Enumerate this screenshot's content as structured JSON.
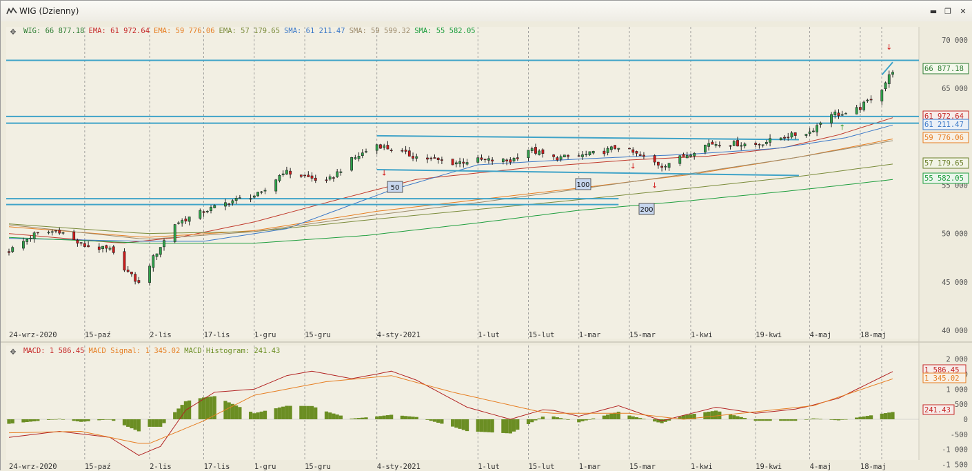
{
  "window": {
    "title": "WIG (Dzienny)",
    "buttons": [
      "minimize",
      "restore",
      "close"
    ]
  },
  "price_panel": {
    "legend": [
      {
        "label": "WIG:",
        "value": "66 877.18",
        "color": "#2E7D32"
      },
      {
        "label": "EMA:",
        "value": "61 972.64",
        "color": "#C62828"
      },
      {
        "label": "EMA:",
        "value": "59 776.06",
        "color": "#E67E22"
      },
      {
        "label": "EMA:",
        "value": "57 179.65",
        "color": "#7A8B3A"
      },
      {
        "label": "SMA:",
        "value": "61 211.47",
        "color": "#3A78C8"
      },
      {
        "label": "SMA:",
        "value": "59 599.32",
        "color": "#9C8A6A"
      },
      {
        "label": "SMA:",
        "value": "55 582.05",
        "color": "#1E9E3E"
      }
    ],
    "y_ticks": [
      "70 000",
      "65 000",
      "60 000",
      "55 000",
      "50 000",
      "45 000",
      "40 000"
    ],
    "x_ticks": [
      "24-wrz-2020",
      "15-paź",
      "2-lis",
      "17-lis",
      "1-gru",
      "15-gru",
      "4-sty-2021",
      "1-lut",
      "15-lut",
      "1-mar",
      "15-mar",
      "1-kwi",
      "19-kwi",
      "4-maj",
      "18-maj"
    ],
    "price_tags": [
      {
        "text": "66 877.18",
        "color": "#2E7D32",
        "bg": "#F4F8EC"
      },
      {
        "text": "61 972.64",
        "color": "#C62828",
        "bg": "#F7EDEA"
      },
      {
        "text": "61 211.47",
        "color": "#3A78C8",
        "bg": "#EAF0F7"
      },
      {
        "text": "59 776.06",
        "color": "#E67E22",
        "bg": "#F8F0E4"
      },
      {
        "text": "57 179.65",
        "color": "#6B7F2A",
        "bg": "#F2F4E6"
      },
      {
        "text": "55 582.05",
        "color": "#1E9E3E",
        "bg": "#EAF5EC"
      }
    ],
    "line_labels": [
      "50",
      "100",
      "200"
    ]
  },
  "macd_panel": {
    "legend": [
      {
        "label": "MACD:",
        "value": "1 586.45",
        "color": "#C62828"
      },
      {
        "label": "MACD Signal:",
        "value": "1 345.02",
        "color": "#E67E22"
      },
      {
        "label": "MACD Histogram:",
        "value": "241.43",
        "color": "#6B8E23"
      }
    ],
    "y_ticks": [
      "2 000",
      "1 500",
      "1 000",
      "500",
      "0",
      "-500",
      "-1 000",
      "-1 500"
    ],
    "x_ticks": [
      "24-wrz-2020",
      "15-paź",
      "2-lis",
      "17-lis",
      "1-gru",
      "15-gru",
      "4-sty-2021",
      "1-lut",
      "15-lut",
      "1-mar",
      "15-mar",
      "1-kwi",
      "19-kwi",
      "4-maj",
      "18-maj"
    ],
    "value_tags": [
      {
        "text": "1 586.45",
        "color": "#C62828",
        "bg": "#F7EDEA"
      },
      {
        "text": "1 345.02",
        "color": "#E67E22",
        "bg": "#F8F0E4"
      },
      {
        "text": "241.43",
        "color": "#C62828",
        "bg": "#F7EDEA"
      }
    ]
  },
  "chart_data": [
    {
      "type": "candlestick",
      "title": "WIG (Dzienny)",
      "ylim": [
        40000,
        70000
      ],
      "x_range": [
        "24-wrz-2020",
        "27-maj-2021"
      ],
      "close_waypoints": [
        {
          "x": "2020-09-24",
          "y": 48200
        },
        {
          "x": "2020-10-01",
          "y": 49900
        },
        {
          "x": "2020-10-08",
          "y": 50300
        },
        {
          "x": "2020-10-14",
          "y": 48800
        },
        {
          "x": "2020-10-22",
          "y": 48300
        },
        {
          "x": "2020-10-27",
          "y": 46000
        },
        {
          "x": "2020-10-30",
          "y": 44800
        },
        {
          "x": "2020-11-03",
          "y": 47500
        },
        {
          "x": "2020-11-09",
          "y": 51000
        },
        {
          "x": "2020-11-17",
          "y": 52300
        },
        {
          "x": "2020-11-25",
          "y": 53400
        },
        {
          "x": "2020-12-03",
          "y": 54100
        },
        {
          "x": "2020-12-09",
          "y": 56400
        },
        {
          "x": "2020-12-15",
          "y": 55900
        },
        {
          "x": "2020-12-21",
          "y": 55300
        },
        {
          "x": "2020-12-28",
          "y": 57600
        },
        {
          "x": "2021-01-04",
          "y": 59200
        },
        {
          "x": "2021-01-08",
          "y": 58700
        },
        {
          "x": "2021-01-14",
          "y": 58000
        },
        {
          "x": "2021-01-25",
          "y": 57300
        },
        {
          "x": "2021-02-01",
          "y": 57600
        },
        {
          "x": "2021-02-10",
          "y": 57500
        },
        {
          "x": "2021-02-15",
          "y": 58700
        },
        {
          "x": "2021-02-22",
          "y": 57800
        },
        {
          "x": "2021-03-01",
          "y": 58000
        },
        {
          "x": "2021-03-08",
          "y": 58500
        },
        {
          "x": "2021-03-12",
          "y": 59000
        },
        {
          "x": "2021-03-18",
          "y": 58000
        },
        {
          "x": "2021-03-24",
          "y": 57000
        },
        {
          "x": "2021-03-30",
          "y": 58000
        },
        {
          "x": "2021-04-06",
          "y": 59300
        },
        {
          "x": "2021-04-12",
          "y": 59300
        },
        {
          "x": "2021-04-19",
          "y": 59200
        },
        {
          "x": "2021-04-27",
          "y": 60000
        },
        {
          "x": "2021-05-04",
          "y": 60500
        },
        {
          "x": "2021-05-10",
          "y": 62500
        },
        {
          "x": "2021-05-14",
          "y": 62200
        },
        {
          "x": "2021-05-18",
          "y": 63000
        },
        {
          "x": "2021-05-24",
          "y": 65000
        },
        {
          "x": "2021-05-27",
          "y": 66877.18
        }
      ],
      "indicator_series": [
        {
          "name": "EMA",
          "last": 61972.64,
          "points": [
            {
              "x": "2020-09-24",
              "y": 50000
            },
            {
              "x": "2020-10-25",
              "y": 49000
            },
            {
              "x": "2020-11-10",
              "y": 49600
            },
            {
              "x": "2020-12-01",
              "y": 51200
            },
            {
              "x": "2020-12-21",
              "y": 53200
            },
            {
              "x": "2021-01-15",
              "y": 55600
            },
            {
              "x": "2021-02-15",
              "y": 56800
            },
            {
              "x": "2021-03-15",
              "y": 57600
            },
            {
              "x": "2021-04-06",
              "y": 58000
            },
            {
              "x": "2021-04-27",
              "y": 58900
            },
            {
              "x": "2021-05-12",
              "y": 60200
            },
            {
              "x": "2021-05-27",
              "y": 61972.64
            }
          ]
        },
        {
          "name": "EMA",
          "last": 59776.06,
          "points": [
            {
              "x": "2020-09-24",
              "y": 50700
            },
            {
              "x": "2020-11-01",
              "y": 49600
            },
            {
              "x": "2020-12-01",
              "y": 50300
            },
            {
              "x": "2021-01-04",
              "y": 52300
            },
            {
              "x": "2021-02-01",
              "y": 53500
            },
            {
              "x": "2021-03-01",
              "y": 54700
            },
            {
              "x": "2021-04-01",
              "y": 56100
            },
            {
              "x": "2021-05-01",
              "y": 57900
            },
            {
              "x": "2021-05-27",
              "y": 59776.06
            }
          ]
        },
        {
          "name": "EMA",
          "last": 57179.65,
          "points": [
            {
              "x": "2020-09-24",
              "y": 51000
            },
            {
              "x": "2020-11-01",
              "y": 50000
            },
            {
              "x": "2020-12-01",
              "y": 50200
            },
            {
              "x": "2021-01-04",
              "y": 51500
            },
            {
              "x": "2021-02-01",
              "y": 52500
            },
            {
              "x": "2021-03-01",
              "y": 53500
            },
            {
              "x": "2021-04-01",
              "y": 54700
            },
            {
              "x": "2021-05-01",
              "y": 55900
            },
            {
              "x": "2021-05-27",
              "y": 57179.65
            }
          ]
        },
        {
          "name": "SMA",
          "last": 61211.47,
          "points": [
            {
              "x": "2020-09-24",
              "y": 49500
            },
            {
              "x": "2020-11-01",
              "y": 49200
            },
            {
              "x": "2020-11-17",
              "y": 49200
            },
            {
              "x": "2020-12-10",
              "y": 50500
            },
            {
              "x": "2021-01-08",
              "y": 54500
            },
            {
              "x": "2021-02-01",
              "y": 57100
            },
            {
              "x": "2021-03-01",
              "y": 57700
            },
            {
              "x": "2021-04-01",
              "y": 58200
            },
            {
              "x": "2021-04-25",
              "y": 58800
            },
            {
              "x": "2021-05-14",
              "y": 59900
            },
            {
              "x": "2021-05-27",
              "y": 61211.47
            }
          ]
        },
        {
          "name": "SMA",
          "last": 59599.32,
          "points": [
            {
              "x": "2020-09-24",
              "y": 50900
            },
            {
              "x": "2020-11-01",
              "y": 49400
            },
            {
              "x": "2020-12-01",
              "y": 50200
            },
            {
              "x": "2021-01-01",
              "y": 51800
            },
            {
              "x": "2021-02-01",
              "y": 53200
            },
            {
              "x": "2021-03-01",
              "y": 54600
            },
            {
              "x": "2021-04-01",
              "y": 56200
            },
            {
              "x": "2021-05-01",
              "y": 57900
            },
            {
              "x": "2021-05-27",
              "y": 59599.32
            }
          ]
        },
        {
          "name": "SMA",
          "last": 55582.05,
          "points": [
            {
              "x": "2020-09-24",
              "y": 49600
            },
            {
              "x": "2020-11-01",
              "y": 49000
            },
            {
              "x": "2020-12-01",
              "y": 49000
            },
            {
              "x": "2021-01-01",
              "y": 49800
            },
            {
              "x": "2021-02-01",
              "y": 51100
            },
            {
              "x": "2021-03-01",
              "y": 52400
            },
            {
              "x": "2021-04-01",
              "y": 53400
            },
            {
              "x": "2021-05-01",
              "y": 54500
            },
            {
              "x": "2021-05-27",
              "y": 55582.05
            }
          ]
        }
      ],
      "horizontal_levels": [
        67900,
        62100,
        61400,
        53600,
        53000
      ],
      "trend_lines": [
        {
          "from": {
            "x": "2021-01-04",
            "y": 60100
          },
          "to": {
            "x": "2021-05-01",
            "y": 59700
          }
        },
        {
          "from": {
            "x": "2021-01-04",
            "y": 56600
          },
          "to": {
            "x": "2021-05-01",
            "y": 56000
          }
        },
        {
          "from": {
            "x": "2021-05-24",
            "y": 66400
          },
          "to": {
            "x": "2021-05-27",
            "y": 67700
          }
        }
      ]
    },
    {
      "type": "bar+line",
      "title": "MACD",
      "ylim": [
        -1700,
        2100
      ],
      "series": [
        {
          "name": "MACD",
          "last": 1586.45,
          "points": [
            {
              "x": "2020-09-24",
              "y": -600
            },
            {
              "x": "2020-10-08",
              "y": -400
            },
            {
              "x": "2020-10-22",
              "y": -600
            },
            {
              "x": "2020-10-30",
              "y": -1200
            },
            {
              "x": "2020-11-05",
              "y": -900
            },
            {
              "x": "2020-11-12",
              "y": 300
            },
            {
              "x": "2020-11-20",
              "y": 900
            },
            {
              "x": "2020-12-01",
              "y": 1000
            },
            {
              "x": "2020-12-10",
              "y": 1450
            },
            {
              "x": "2020-12-17",
              "y": 1600
            },
            {
              "x": "2020-12-28",
              "y": 1350
            },
            {
              "x": "2021-01-04",
              "y": 1500
            },
            {
              "x": "2021-01-08",
              "y": 1600
            },
            {
              "x": "2021-01-15",
              "y": 1300
            },
            {
              "x": "2021-01-29",
              "y": 400
            },
            {
              "x": "2021-02-10",
              "y": 0
            },
            {
              "x": "2021-02-20",
              "y": 350
            },
            {
              "x": "2021-03-01",
              "y": 100
            },
            {
              "x": "2021-03-12",
              "y": 450
            },
            {
              "x": "2021-03-24",
              "y": -50
            },
            {
              "x": "2021-04-08",
              "y": 400
            },
            {
              "x": "2021-04-19",
              "y": 200
            },
            {
              "x": "2021-05-01",
              "y": 350
            },
            {
              "x": "2021-05-12",
              "y": 700
            },
            {
              "x": "2021-05-27",
              "y": 1586.45
            }
          ]
        },
        {
          "name": "MACD Signal",
          "last": 1345.02,
          "points": [
            {
              "x": "2020-09-24",
              "y": -450
            },
            {
              "x": "2020-10-14",
              "y": -400
            },
            {
              "x": "2020-11-01",
              "y": -850
            },
            {
              "x": "2020-11-17",
              "y": -50
            },
            {
              "x": "2020-12-01",
              "y": 800
            },
            {
              "x": "2020-12-21",
              "y": 1250
            },
            {
              "x": "2021-01-08",
              "y": 1450
            },
            {
              "x": "2021-01-25",
              "y": 900
            },
            {
              "x": "2021-02-20",
              "y": 200
            },
            {
              "x": "2021-03-15",
              "y": 200
            },
            {
              "x": "2021-03-30",
              "y": 0
            },
            {
              "x": "2021-04-19",
              "y": 250
            },
            {
              "x": "2021-05-05",
              "y": 450
            },
            {
              "x": "2021-05-27",
              "y": 1345.02
            }
          ]
        },
        {
          "name": "MACD Histogram",
          "last": 241.43
        }
      ]
    }
  ]
}
